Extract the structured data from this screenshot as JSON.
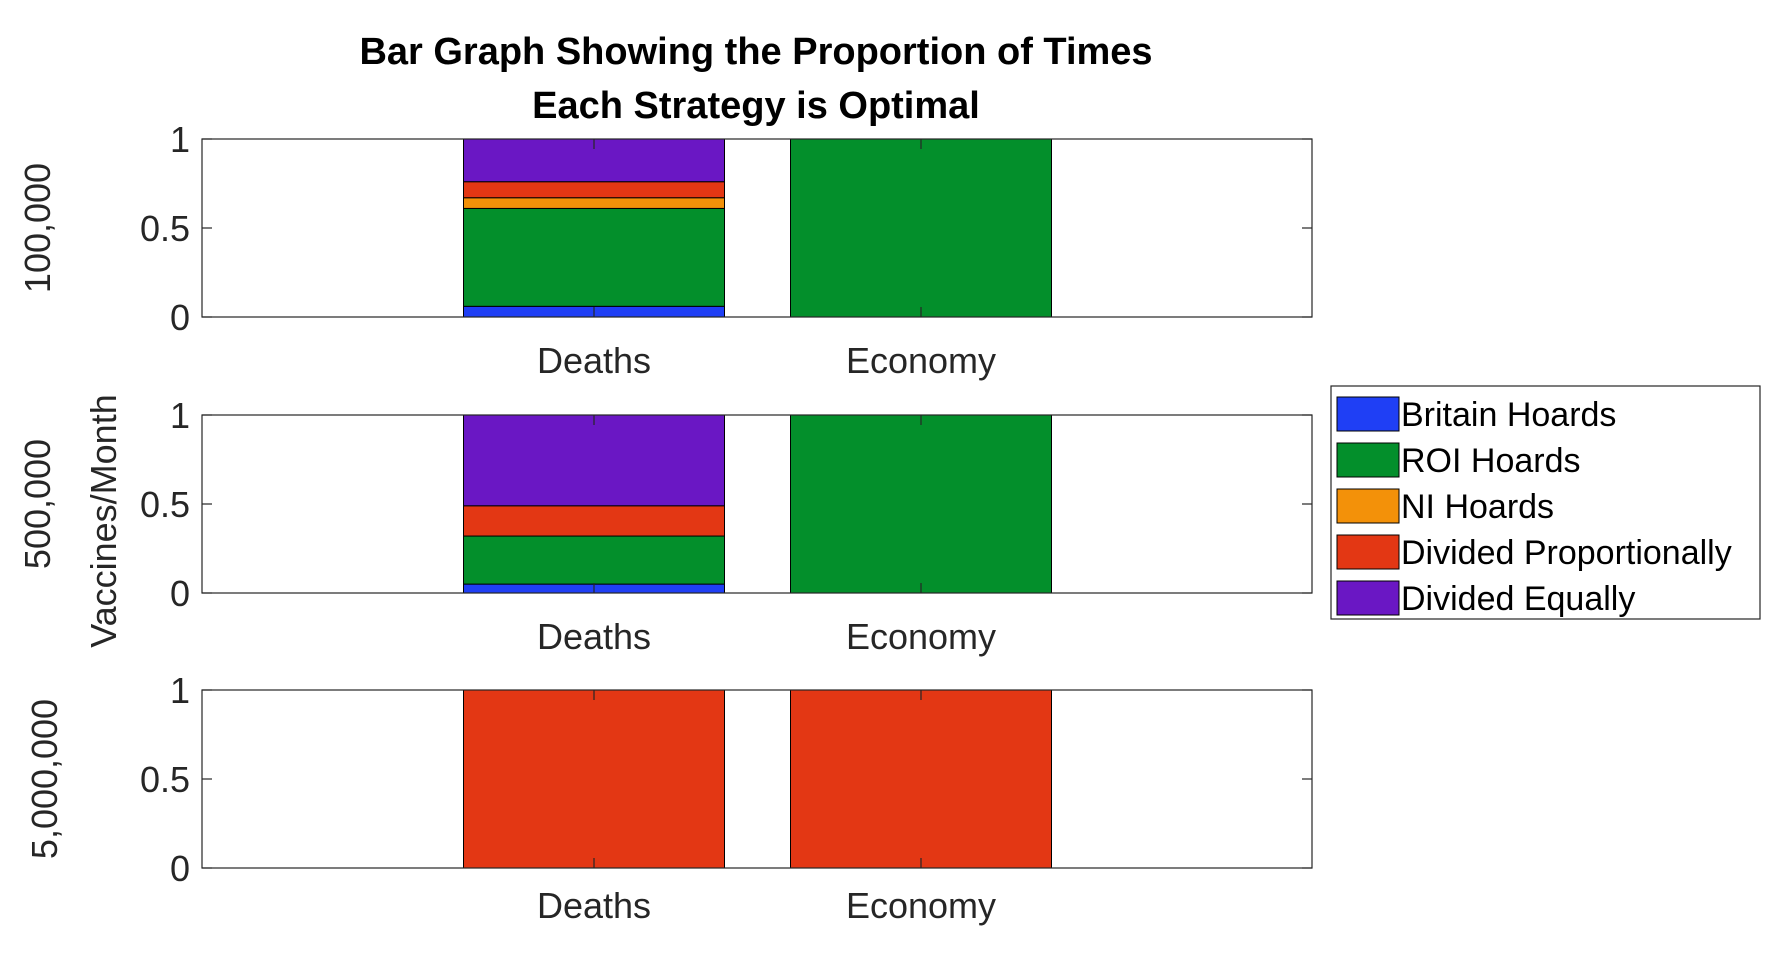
{
  "chart_data": {
    "type": "bar",
    "stacked": true,
    "title": [
      "Bar Graph Showing the Proportion of Times",
      "Each Strategy is Optimal"
    ],
    "ylabel": "Vaccines/Month",
    "categories": [
      "Deaths",
      "Economy"
    ],
    "ylim": [
      0,
      1
    ],
    "yticks": [
      "0",
      "0.5",
      "1"
    ],
    "legend_position": "right",
    "legend": [
      {
        "name": "Britain Hoards",
        "color": "#1f3ff5"
      },
      {
        "name": "ROI Hoards",
        "color": "#038f2b"
      },
      {
        "name": "NI Hoards",
        "color": "#f39109"
      },
      {
        "name": "Divided Proportionally",
        "color": "#e33714"
      },
      {
        "name": "Divided Equally",
        "color": "#6a17c4"
      }
    ],
    "panels": [
      {
        "label": "100,000",
        "series": [
          {
            "name": "Britain Hoards",
            "values": [
              0.06,
              0
            ]
          },
          {
            "name": "ROI Hoards",
            "values": [
              0.55,
              1
            ]
          },
          {
            "name": "NI Hoards",
            "values": [
              0.06,
              0
            ]
          },
          {
            "name": "Divided Proportionally",
            "values": [
              0.09,
              0
            ]
          },
          {
            "name": "Divided Equally",
            "values": [
              0.24,
              0
            ]
          }
        ]
      },
      {
        "label": "500,000",
        "series": [
          {
            "name": "Britain Hoards",
            "values": [
              0.05,
              0
            ]
          },
          {
            "name": "ROI Hoards",
            "values": [
              0.27,
              1
            ]
          },
          {
            "name": "NI Hoards",
            "values": [
              0,
              0
            ]
          },
          {
            "name": "Divided Proportionally",
            "values": [
              0.17,
              0
            ]
          },
          {
            "name": "Divided Equally",
            "values": [
              0.51,
              0
            ]
          }
        ]
      },
      {
        "label": "5,000,000",
        "series": [
          {
            "name": "Britain Hoards",
            "values": [
              0,
              0
            ]
          },
          {
            "name": "ROI Hoards",
            "values": [
              0,
              0
            ]
          },
          {
            "name": "NI Hoards",
            "values": [
              0,
              0
            ]
          },
          {
            "name": "Divided Proportionally",
            "values": [
              1,
              1
            ]
          },
          {
            "name": "Divided Equally",
            "values": [
              0,
              0
            ]
          }
        ]
      }
    ]
  }
}
